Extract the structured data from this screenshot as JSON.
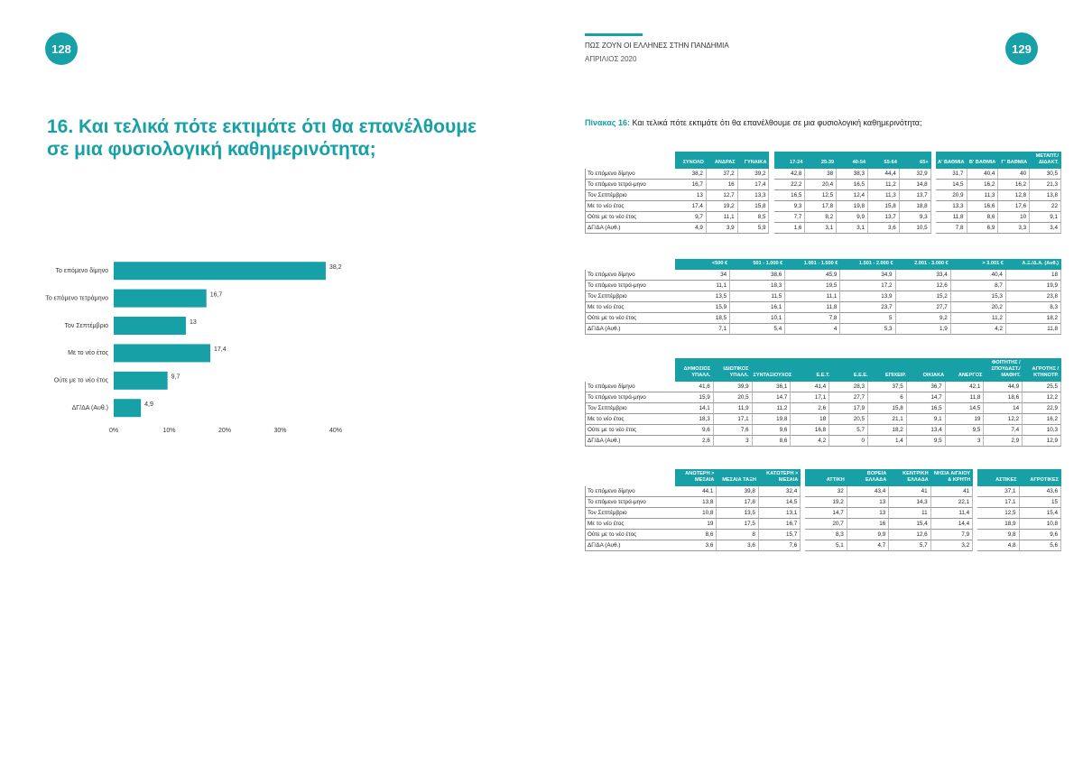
{
  "pages": {
    "left": "128",
    "right": "129"
  },
  "header": {
    "title": "ΠΩΣ ΖΟΥΝ ΟΙ ΕΛΛΗΝΕΣ ΣΤΗΝ ΠΑΝΔΗΜΙΑ",
    "date": "ΑΠΡΙΛΙΟΣ 2020"
  },
  "question": "16. Και τελικά πότε εκτιμάτε ότι θα επανέλθουμε σε μια φυσιολογική καθημερινότητα;",
  "caption": {
    "label": "Πίνακας 16:",
    "text": "Και τελικά πότε εκτιμάτε ότι θα επανέλθουμε σε μια φυσιολογική καθημερινότητα;"
  },
  "chart_data": {
    "type": "hbar",
    "color": "#17a0a6",
    "categories": [
      "Το επόμενο δίμηνο",
      "Το επόμενο τετράμηνο",
      "Τον Σεπτέμβριο",
      "Με το νέο έτος",
      "Ούτε με το νέο έτος",
      "ΔΓ/ΔΑ (Αυθ.)"
    ],
    "values": [
      38.2,
      16.7,
      13,
      17.4,
      9.7,
      4.9
    ],
    "value_labels": [
      "38,2",
      "16,7",
      "13",
      "17,4",
      "9,7",
      "4,9"
    ],
    "xlim": [
      0,
      40
    ],
    "xticks": [
      {
        "value": 0,
        "label": "0%"
      },
      {
        "value": 10,
        "label": "10%"
      },
      {
        "value": 20,
        "label": "20%"
      },
      {
        "value": 30,
        "label": "30%"
      },
      {
        "value": 40,
        "label": "40%"
      }
    ]
  },
  "tables": [
    {
      "header_groups": [
        [
          "ΣΥΝΟΛΟ",
          "ΑΝΔΡΑΣ",
          "ΓΥΝΑΙΚΑ"
        ],
        [
          "17-24",
          "25-39",
          "40-54",
          "55-64",
          "65+"
        ],
        [
          "Α' ΒΑΘΜΙΑ",
          "Β' ΒΑΘΜΙΑ",
          "Γ' ΒΑΘΜΙΑ",
          "ΜΕΤΑΠΤ./ ΔΙΔΑΚΤ."
        ]
      ],
      "rows": [
        {
          "label": "Το επόμενο δίμηνο",
          "groups": [
            [
              "38,2",
              "37,2",
              "39,2"
            ],
            [
              "42,8",
              "38",
              "38,3",
              "44,4",
              "32,9"
            ],
            [
              "31,7",
              "40,4",
              "40",
              "30,5"
            ]
          ]
        },
        {
          "label": "Το επόμενο τετρά-μηνο",
          "groups": [
            [
              "16,7",
              "16",
              "17,4"
            ],
            [
              "22,2",
              "20,4",
              "16,5",
              "11,2",
              "14,8"
            ],
            [
              "14,5",
              "16,2",
              "16,2",
              "21,3"
            ]
          ]
        },
        {
          "label": "Τον Σεπτέμβριο",
          "groups": [
            [
              "13",
              "12,7",
              "13,3"
            ],
            [
              "16,5",
              "12,5",
              "12,4",
              "11,3",
              "13,7"
            ],
            [
              "20,9",
              "11,3",
              "12,8",
              "13,8"
            ]
          ]
        },
        {
          "label": "Με το νέο έτος",
          "groups": [
            [
              "17,4",
              "19,2",
              "15,8"
            ],
            [
              "9,3",
              "17,8",
              "19,8",
              "15,8",
              "18,8"
            ],
            [
              "13,3",
              "16,6",
              "17,6",
              "22"
            ]
          ]
        },
        {
          "label": "Ούτε με το νέο έτος",
          "groups": [
            [
              "9,7",
              "11,1",
              "8,5"
            ],
            [
              "7,7",
              "8,2",
              "9,9",
              "13,7",
              "9,3"
            ],
            [
              "11,8",
              "8,6",
              "10",
              "9,1"
            ]
          ]
        },
        {
          "label": "ΔΓ/ΔΑ (Αυθ.)",
          "groups": [
            [
              "4,9",
              "3,9",
              "5,9"
            ],
            [
              "1,6",
              "3,1",
              "3,1",
              "3,6",
              "10,5"
            ],
            [
              "7,8",
              "6,9",
              "3,3",
              "3,4"
            ]
          ]
        }
      ]
    },
    {
      "header_groups": [
        [
          "<500 €",
          "501 - 1.000 €",
          "1.001 - 1.500 €",
          "1.501 - 2.000 €",
          "2.001 - 3.000 €",
          "> 3.001 €",
          "Α.Ξ./Δ.Α. (Αυθ.)"
        ]
      ],
      "rows": [
        {
          "label": "Το επόμενο δίμηνο",
          "groups": [
            [
              "34",
              "38,6",
              "45,9",
              "34,9",
              "33,4",
              "40,4",
              "18"
            ]
          ]
        },
        {
          "label": "Το επόμενο τετρά-μηνο",
          "groups": [
            [
              "11,1",
              "18,3",
              "19,5",
              "17,2",
              "12,6",
              "8,7",
              "19,9"
            ]
          ]
        },
        {
          "label": "Τον Σεπτέμβριο",
          "groups": [
            [
              "13,5",
              "11,5",
              "11,1",
              "13,9",
              "15,2",
              "15,3",
              "23,8"
            ]
          ]
        },
        {
          "label": "Με το νέο έτος",
          "groups": [
            [
              "15,9",
              "16,1",
              "11,8",
              "23,7",
              "27,7",
              "20,2",
              "8,3"
            ]
          ]
        },
        {
          "label": "Ούτε με το νέο έτος",
          "groups": [
            [
              "18,5",
              "10,1",
              "7,8",
              "5",
              "9,2",
              "11,2",
              "18,2"
            ]
          ]
        },
        {
          "label": "ΔΓ/ΔΑ (Αυθ.)",
          "groups": [
            [
              "7,1",
              "5,4",
              "4",
              "5,3",
              "1,9",
              "4,2",
              "11,8"
            ]
          ]
        }
      ]
    },
    {
      "header_groups": [
        [
          "ΔΗΜΟΣΙΟΣ ΥΠΑΛΛ.",
          "ΙΔΙΩΤΙΚΟΣ ΥΠΑΛΛ.",
          "ΣΥΝΤΑΞΙΟΥΧΟΣ",
          "Ε.Ε.Τ.",
          "Ε.Ε.Ε.",
          "ΕΠΙΧΕΙΡ.",
          "ΟΙΚΙΑΚΑ",
          "ΑΝΕΡΓΟΣ",
          "ΦΟΙΤΗΤΗΣ / ΣΠΟΥΔΑΣΤ./ ΜΑΘΗΤ.",
          "ΑΓΡΟΤΗΣ / ΚΤΗΝΟΤΡ."
        ]
      ],
      "rows": [
        {
          "label": "Το επόμενο δίμηνο",
          "groups": [
            [
              "41,6",
              "39,9",
              "36,1",
              "41,4",
              "28,3",
              "37,5",
              "36,7",
              "42,1",
              "44,9",
              "25,5"
            ]
          ]
        },
        {
          "label": "Το επόμενο τετρά-μηνο",
          "groups": [
            [
              "15,9",
              "20,5",
              "14,7",
              "17,1",
              "27,7",
              "6",
              "14,7",
              "11,8",
              "18,6",
              "12,2"
            ]
          ]
        },
        {
          "label": "Τον Σεπτέμβριο",
          "groups": [
            [
              "14,1",
              "11,9",
              "11,2",
              "2,6",
              "17,9",
              "15,8",
              "16,5",
              "14,5",
              "14",
              "22,9"
            ]
          ]
        },
        {
          "label": "Με το νέο έτος",
          "groups": [
            [
              "18,3",
              "17,1",
              "19,8",
              "18",
              "20,5",
              "21,1",
              "9,1",
              "19",
              "12,2",
              "16,2"
            ]
          ]
        },
        {
          "label": "Ούτε με το νέο έτος",
          "groups": [
            [
              "9,6",
              "7,6",
              "9,6",
              "16,8",
              "5,7",
              "18,2",
              "13,4",
              "9,5",
              "7,4",
              "10,3"
            ]
          ]
        },
        {
          "label": "ΔΓ/ΔΑ (Αυθ.)",
          "groups": [
            [
              "2,6",
              "3",
              "8,6",
              "4,2",
              "0",
              "1,4",
              "9,5",
              "3",
              "2,9",
              "12,9"
            ]
          ]
        }
      ]
    },
    {
      "header_groups": [
        [
          "ΑΝΩΤΕΡΗ > ΜΕΣΑΙΑ",
          "ΜΕΣΑΙΑ ΤΑΞΗ",
          "ΚΑΤΩΤΕΡΗ > ΜΕΣΑΙΑ"
        ],
        [
          "ΑΤΤΙΚΗ",
          "ΒΟΡΕΙΑ ΕΛΛΑΔΑ",
          "ΚΕΝΤΡΙΚΗ ΕΛΛΑΔΑ",
          "ΝΗΣΙΑ ΑΙΓΑΙΟΥ & ΚΡΗΤΗ"
        ],
        [
          "ΑΣΤΙΚΕΣ",
          "ΑΓΡΟΤΙΚΕΣ"
        ]
      ],
      "rows": [
        {
          "label": "Το επόμενο δίμηνο",
          "groups": [
            [
              "44,1",
              "39,8",
              "32,4"
            ],
            [
              "32",
              "43,4",
              "41",
              "41"
            ],
            [
              "37,1",
              "43,6"
            ]
          ]
        },
        {
          "label": "Το επόμενο τετρά-μηνο",
          "groups": [
            [
              "13,8",
              "17,8",
              "14,5"
            ],
            [
              "19,2",
              "13",
              "14,3",
              "22,1"
            ],
            [
              "17,1",
              "15"
            ]
          ]
        },
        {
          "label": "Τον Σεπτέμβριο",
          "groups": [
            [
              "10,8",
              "13,5",
              "13,1"
            ],
            [
              "14,7",
              "13",
              "11",
              "11,4"
            ],
            [
              "12,5",
              "15,4"
            ]
          ]
        },
        {
          "label": "Με το νέο έτος",
          "groups": [
            [
              "19",
              "17,5",
              "16,7"
            ],
            [
              "20,7",
              "16",
              "15,4",
              "14,4"
            ],
            [
              "18,9",
              "10,8"
            ]
          ]
        },
        {
          "label": "Ούτε με το νέο έτος",
          "groups": [
            [
              "8,6",
              "8",
              "15,7"
            ],
            [
              "8,3",
              "9,9",
              "12,6",
              "7,9"
            ],
            [
              "9,8",
              "9,6"
            ]
          ]
        },
        {
          "label": "ΔΓ/ΔΑ (Αυθ.)",
          "groups": [
            [
              "3,6",
              "3,6",
              "7,6"
            ],
            [
              "5,1",
              "4,7",
              "5,7",
              "3,2"
            ],
            [
              "4,8",
              "5,6"
            ]
          ]
        }
      ]
    }
  ]
}
